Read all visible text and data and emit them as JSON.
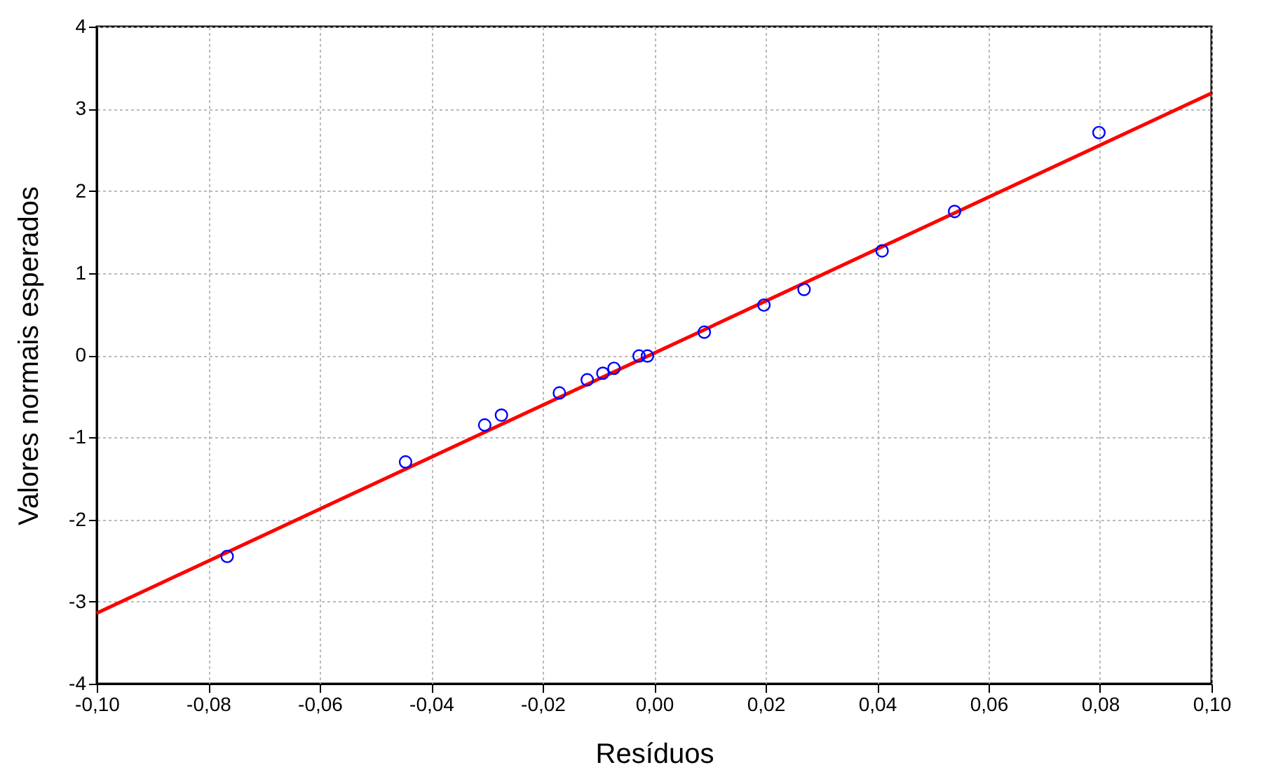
{
  "chart_data": {
    "type": "scatter",
    "xlabel": "Resíduos",
    "ylabel": "Valores normais esperados",
    "xlim": [
      -0.1,
      0.1
    ],
    "ylim": [
      -4,
      4
    ],
    "xticks": [
      {
        "value": -0.1,
        "label": "-0,10"
      },
      {
        "value": -0.08,
        "label": "-0,08"
      },
      {
        "value": -0.06,
        "label": "-0,06"
      },
      {
        "value": -0.04,
        "label": "-0,04"
      },
      {
        "value": -0.02,
        "label": "-0,02"
      },
      {
        "value": 0,
        "label": "0,00"
      },
      {
        "value": 0.02,
        "label": "0,02"
      },
      {
        "value": 0.04,
        "label": "0,04"
      },
      {
        "value": 0.06,
        "label": "0,06"
      },
      {
        "value": 0.08,
        "label": "0,08"
      },
      {
        "value": 0.1,
        "label": "0,10"
      }
    ],
    "yticks": [
      -4,
      -3,
      -2,
      -1,
      0,
      1,
      2,
      3,
      4
    ],
    "grid": true,
    "series": [
      {
        "marker": "circle",
        "color": "#0000ff",
        "x": [
          -0.0766,
          -0.0446,
          -0.0304,
          -0.0274,
          -0.017,
          -0.012,
          -0.0092,
          -0.0072,
          -0.0027,
          -0.0012,
          0.009,
          0.0197,
          0.0269,
          0.0409,
          0.0539,
          0.0798
        ],
        "values": [
          -2.45,
          -1.3,
          -0.85,
          -0.73,
          -0.46,
          -0.3,
          -0.22,
          -0.16,
          -0.01,
          -0.01,
          0.28,
          0.61,
          0.8,
          1.27,
          1.75,
          2.71
        ]
      },
      {
        "type": "line",
        "color": "#ff0000",
        "x": [
          -0.1,
          0.1
        ],
        "values": [
          -3.14,
          3.19
        ]
      }
    ]
  }
}
